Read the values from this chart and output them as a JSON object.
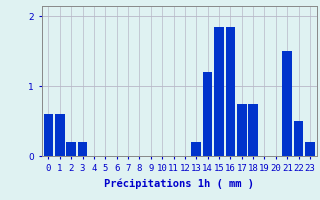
{
  "hours": [
    0,
    1,
    2,
    3,
    4,
    5,
    6,
    7,
    8,
    9,
    10,
    11,
    12,
    13,
    14,
    15,
    16,
    17,
    18,
    19,
    20,
    21,
    22,
    23
  ],
  "values": [
    0.6,
    0.6,
    0.2,
    0.2,
    0.0,
    0.0,
    0.0,
    0.0,
    0.0,
    0.0,
    0.0,
    0.0,
    0.0,
    0.2,
    1.2,
    1.85,
    1.85,
    0.75,
    0.75,
    0.0,
    0.0,
    1.5,
    0.5,
    0.2
  ],
  "bar_color": "#0033cc",
  "background_color": "#dff2f2",
  "grid_color": "#b8b8c8",
  "text_color": "#0000cc",
  "xlabel": "Précipitations 1h ( mm )",
  "ylim": [
    0,
    2.15
  ],
  "yticks": [
    0,
    1,
    2
  ],
  "axis_fontsize": 7.5,
  "tick_fontsize": 6.5
}
